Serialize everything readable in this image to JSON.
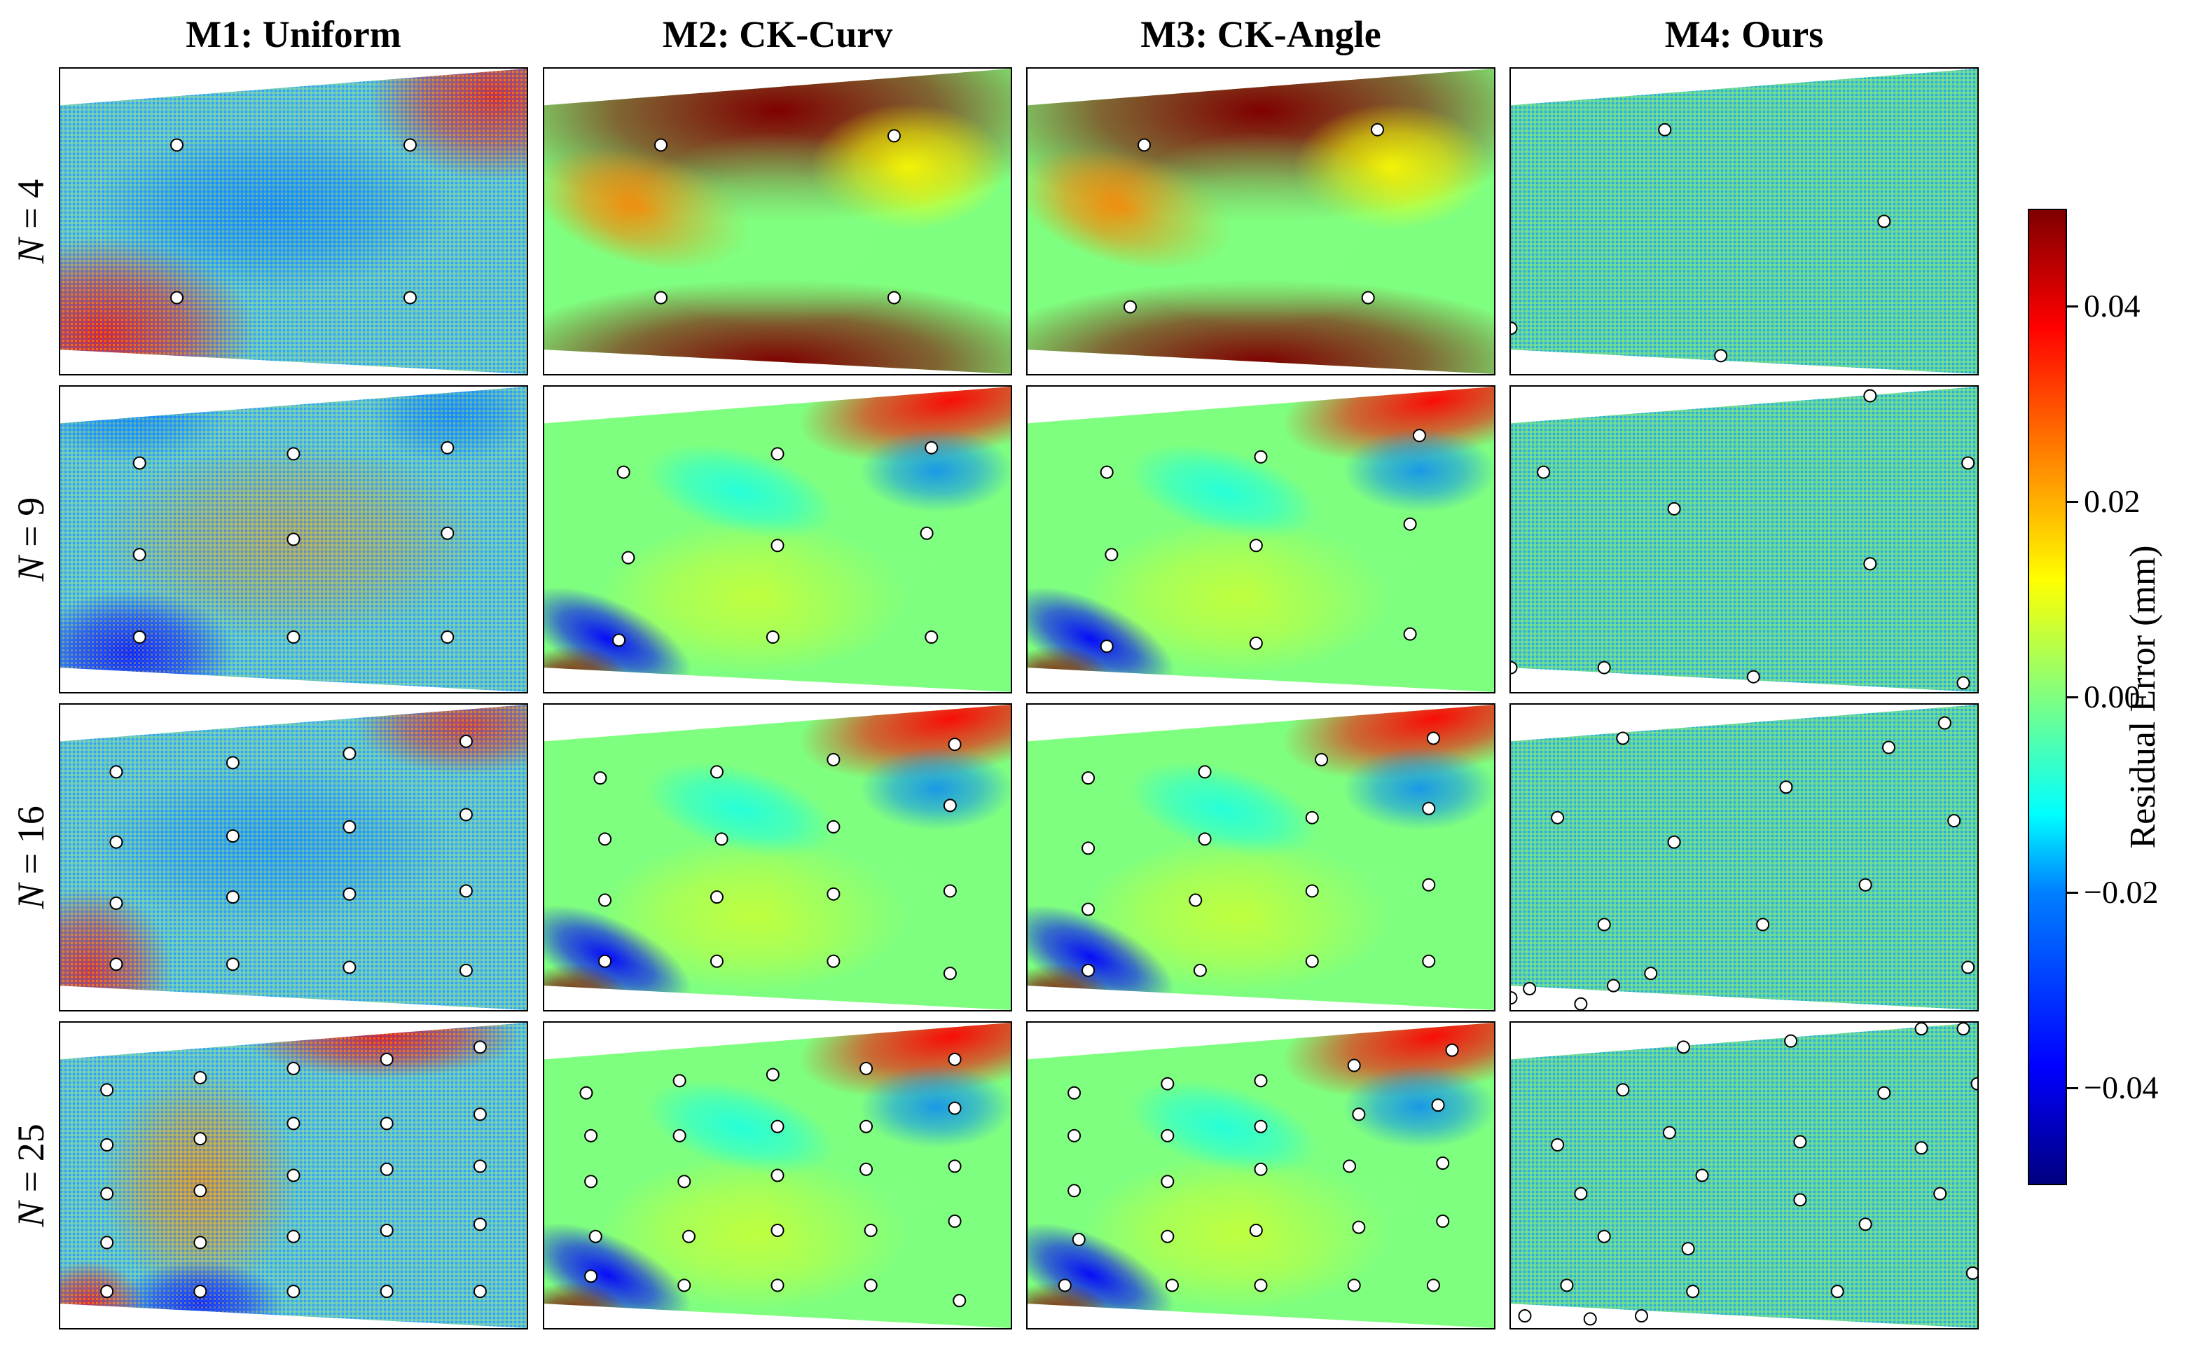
{
  "chart_data": {
    "type": "heatmap",
    "figure": "Residual error maps for four sampling methods and four sample counts",
    "columns": [
      "M1: Uniform",
      "M2: CK-Curv",
      "M3: CK-Angle",
      "M4: Ours"
    ],
    "rows": [
      {
        "n": "4",
        "label": "N = 4"
      },
      {
        "n": "9",
        "label": "N = 9"
      },
      {
        "n": "16",
        "label": "N = 16"
      },
      {
        "n": "25",
        "label": "N = 25"
      }
    ],
    "colorbar": {
      "label": "Residual Error (mm)",
      "range": [
        -0.05,
        0.05
      ],
      "ticks": [
        0.04,
        0.02,
        0.0,
        -0.02,
        -0.04
      ],
      "tick_labels": [
        "0.04",
        "0.02",
        "0.00",
        "−0.02",
        "−0.04"
      ],
      "colormap": [
        "#00007f",
        "#0000ff",
        "#0080ff",
        "#00ffff",
        "#80ff80",
        "#ffff00",
        "#ff8000",
        "#ff0000",
        "#7f0000"
      ]
    },
    "panels": [
      {
        "method": "M1: Uniform",
        "n": 4,
        "style": "noisy",
        "samples": [
          [
            0.25,
            0.25
          ],
          [
            0.75,
            0.25
          ],
          [
            0.25,
            0.75
          ],
          [
            0.75,
            0.75
          ]
        ]
      },
      {
        "method": "M2: CK-Curv",
        "n": 4,
        "style": "smooth",
        "samples": [
          [
            0.25,
            0.25
          ],
          [
            0.75,
            0.22
          ],
          [
            0.25,
            0.75
          ],
          [
            0.75,
            0.75
          ]
        ]
      },
      {
        "method": "M3: CK-Angle",
        "n": 4,
        "style": "smooth",
        "samples": [
          [
            0.25,
            0.25
          ],
          [
            0.75,
            0.2
          ],
          [
            0.22,
            0.78
          ],
          [
            0.73,
            0.75
          ]
        ]
      },
      {
        "method": "M4: Ours",
        "n": 4,
        "style": "flat",
        "samples": [
          [
            0.33,
            0.2
          ],
          [
            0.8,
            0.5
          ],
          [
            0.45,
            0.94
          ],
          [
            0.0,
            0.85
          ]
        ]
      },
      {
        "method": "M1: Uniform",
        "n": 9,
        "style": "noisy",
        "samples": [
          [
            0.17,
            0.25
          ],
          [
            0.5,
            0.22
          ],
          [
            0.83,
            0.2
          ],
          [
            0.17,
            0.55
          ],
          [
            0.5,
            0.5
          ],
          [
            0.83,
            0.48
          ],
          [
            0.17,
            0.82
          ],
          [
            0.5,
            0.82
          ],
          [
            0.83,
            0.82
          ]
        ]
      },
      {
        "method": "M2: CK-Curv",
        "n": 9,
        "style": "smooth",
        "samples": [
          [
            0.17,
            0.28
          ],
          [
            0.5,
            0.22
          ],
          [
            0.83,
            0.2
          ],
          [
            0.18,
            0.56
          ],
          [
            0.5,
            0.52
          ],
          [
            0.82,
            0.48
          ],
          [
            0.16,
            0.83
          ],
          [
            0.49,
            0.82
          ],
          [
            0.83,
            0.82
          ]
        ]
      },
      {
        "method": "M3: CK-Angle",
        "n": 9,
        "style": "smooth",
        "samples": [
          [
            0.17,
            0.28
          ],
          [
            0.5,
            0.23
          ],
          [
            0.84,
            0.16
          ],
          [
            0.18,
            0.55
          ],
          [
            0.49,
            0.52
          ],
          [
            0.82,
            0.45
          ],
          [
            0.17,
            0.85
          ],
          [
            0.49,
            0.84
          ],
          [
            0.82,
            0.81
          ]
        ]
      },
      {
        "method": "M4: Ours",
        "n": 9,
        "style": "flat",
        "samples": [
          [
            0.07,
            0.28
          ],
          [
            0.35,
            0.4
          ],
          [
            0.77,
            0.58
          ],
          [
            0.2,
            0.92
          ],
          [
            0.52,
            0.95
          ],
          [
            0.77,
            0.03
          ],
          [
            0.98,
            0.25
          ],
          [
            0.0,
            0.92
          ],
          [
            0.97,
            0.97
          ]
        ]
      },
      {
        "method": "M1: Uniform",
        "n": 16,
        "style": "noisy",
        "samples": [
          [
            0.12,
            0.22
          ],
          [
            0.37,
            0.19
          ],
          [
            0.62,
            0.16
          ],
          [
            0.87,
            0.12
          ],
          [
            0.12,
            0.45
          ],
          [
            0.37,
            0.43
          ],
          [
            0.62,
            0.4
          ],
          [
            0.87,
            0.36
          ],
          [
            0.12,
            0.65
          ],
          [
            0.37,
            0.63
          ],
          [
            0.62,
            0.62
          ],
          [
            0.87,
            0.61
          ],
          [
            0.12,
            0.85
          ],
          [
            0.37,
            0.85
          ],
          [
            0.62,
            0.86
          ],
          [
            0.87,
            0.87
          ]
        ]
      },
      {
        "method": "M2: CK-Curv",
        "n": 16,
        "style": "smooth",
        "samples": [
          [
            0.12,
            0.24
          ],
          [
            0.37,
            0.22
          ],
          [
            0.62,
            0.18
          ],
          [
            0.88,
            0.13
          ],
          [
            0.13,
            0.44
          ],
          [
            0.38,
            0.44
          ],
          [
            0.62,
            0.4
          ],
          [
            0.87,
            0.33
          ],
          [
            0.13,
            0.64
          ],
          [
            0.37,
            0.63
          ],
          [
            0.62,
            0.62
          ],
          [
            0.87,
            0.61
          ],
          [
            0.13,
            0.84
          ],
          [
            0.37,
            0.84
          ],
          [
            0.62,
            0.84
          ],
          [
            0.87,
            0.88
          ]
        ]
      },
      {
        "method": "M3: CK-Angle",
        "n": 16,
        "style": "smooth",
        "samples": [
          [
            0.13,
            0.24
          ],
          [
            0.38,
            0.22
          ],
          [
            0.63,
            0.18
          ],
          [
            0.87,
            0.11
          ],
          [
            0.13,
            0.47
          ],
          [
            0.38,
            0.44
          ],
          [
            0.61,
            0.37
          ],
          [
            0.86,
            0.34
          ],
          [
            0.13,
            0.67
          ],
          [
            0.36,
            0.64
          ],
          [
            0.61,
            0.61
          ],
          [
            0.86,
            0.59
          ],
          [
            0.13,
            0.87
          ],
          [
            0.37,
            0.87
          ],
          [
            0.61,
            0.84
          ],
          [
            0.86,
            0.84
          ]
        ]
      },
      {
        "method": "M4: Ours",
        "n": 16,
        "style": "flat",
        "samples": [
          [
            0.24,
            0.11
          ],
          [
            0.81,
            0.14
          ],
          [
            0.93,
            0.06
          ],
          [
            0.1,
            0.37
          ],
          [
            0.59,
            0.27
          ],
          [
            0.35,
            0.45
          ],
          [
            0.95,
            0.38
          ],
          [
            0.2,
            0.72
          ],
          [
            0.54,
            0.72
          ],
          [
            0.76,
            0.59
          ],
          [
            0.04,
            0.93
          ],
          [
            0.22,
            0.92
          ],
          [
            0.3,
            0.88
          ],
          [
            0.98,
            0.86
          ],
          [
            0.0,
            0.96
          ],
          [
            0.15,
            0.98
          ]
        ]
      },
      {
        "method": "M1: Uniform",
        "n": 25,
        "style": "noisy",
        "samples": [
          [
            0.1,
            0.22
          ],
          [
            0.3,
            0.18
          ],
          [
            0.5,
            0.15
          ],
          [
            0.7,
            0.12
          ],
          [
            0.9,
            0.08
          ],
          [
            0.1,
            0.4
          ],
          [
            0.3,
            0.38
          ],
          [
            0.5,
            0.33
          ],
          [
            0.7,
            0.33
          ],
          [
            0.9,
            0.3
          ],
          [
            0.1,
            0.56
          ],
          [
            0.3,
            0.55
          ],
          [
            0.5,
            0.5
          ],
          [
            0.7,
            0.48
          ],
          [
            0.9,
            0.47
          ],
          [
            0.1,
            0.72
          ],
          [
            0.3,
            0.72
          ],
          [
            0.5,
            0.7
          ],
          [
            0.7,
            0.68
          ],
          [
            0.9,
            0.66
          ],
          [
            0.1,
            0.88
          ],
          [
            0.3,
            0.88
          ],
          [
            0.5,
            0.88
          ],
          [
            0.7,
            0.88
          ],
          [
            0.9,
            0.88
          ]
        ]
      },
      {
        "method": "M2: CK-Curv",
        "n": 25,
        "style": "smooth",
        "samples": [
          [
            0.09,
            0.23
          ],
          [
            0.29,
            0.19
          ],
          [
            0.49,
            0.17
          ],
          [
            0.69,
            0.15
          ],
          [
            0.88,
            0.12
          ],
          [
            0.1,
            0.37
          ],
          [
            0.29,
            0.37
          ],
          [
            0.5,
            0.34
          ],
          [
            0.69,
            0.34
          ],
          [
            0.88,
            0.28
          ],
          [
            0.1,
            0.52
          ],
          [
            0.3,
            0.52
          ],
          [
            0.5,
            0.5
          ],
          [
            0.69,
            0.48
          ],
          [
            0.88,
            0.47
          ],
          [
            0.11,
            0.7
          ],
          [
            0.31,
            0.7
          ],
          [
            0.5,
            0.68
          ],
          [
            0.7,
            0.68
          ],
          [
            0.88,
            0.65
          ],
          [
            0.1,
            0.83
          ],
          [
            0.3,
            0.86
          ],
          [
            0.5,
            0.86
          ],
          [
            0.7,
            0.86
          ],
          [
            0.89,
            0.91
          ]
        ]
      },
      {
        "method": "M3: CK-Angle",
        "n": 25,
        "style": "smooth",
        "samples": [
          [
            0.1,
            0.23
          ],
          [
            0.3,
            0.2
          ],
          [
            0.5,
            0.19
          ],
          [
            0.7,
            0.14
          ],
          [
            0.91,
            0.09
          ],
          [
            0.1,
            0.37
          ],
          [
            0.3,
            0.37
          ],
          [
            0.5,
            0.34
          ],
          [
            0.71,
            0.3
          ],
          [
            0.88,
            0.27
          ],
          [
            0.1,
            0.55
          ],
          [
            0.3,
            0.52
          ],
          [
            0.5,
            0.48
          ],
          [
            0.69,
            0.47
          ],
          [
            0.89,
            0.46
          ],
          [
            0.11,
            0.71
          ],
          [
            0.3,
            0.7
          ],
          [
            0.49,
            0.68
          ],
          [
            0.71,
            0.67
          ],
          [
            0.89,
            0.65
          ],
          [
            0.08,
            0.86
          ],
          [
            0.31,
            0.86
          ],
          [
            0.5,
            0.86
          ],
          [
            0.7,
            0.86
          ],
          [
            0.87,
            0.86
          ]
        ]
      },
      {
        "method": "M4: Ours",
        "n": 25,
        "style": "flat",
        "samples": [
          [
            0.37,
            0.08
          ],
          [
            0.6,
            0.06
          ],
          [
            0.88,
            0.02
          ],
          [
            0.97,
            0.02
          ],
          [
            0.24,
            0.22
          ],
          [
            0.8,
            0.23
          ],
          [
            1.0,
            0.2
          ],
          [
            0.1,
            0.4
          ],
          [
            0.34,
            0.36
          ],
          [
            0.62,
            0.39
          ],
          [
            0.88,
            0.41
          ],
          [
            0.15,
            0.56
          ],
          [
            0.41,
            0.5
          ],
          [
            0.62,
            0.58
          ],
          [
            0.92,
            0.56
          ],
          [
            0.2,
            0.7
          ],
          [
            0.38,
            0.74
          ],
          [
            0.76,
            0.66
          ],
          [
            0.12,
            0.86
          ],
          [
            0.39,
            0.88
          ],
          [
            0.7,
            0.88
          ],
          [
            0.99,
            0.82
          ],
          [
            0.03,
            0.96
          ],
          [
            0.17,
            0.97
          ],
          [
            0.28,
            0.96
          ]
        ]
      }
    ]
  }
}
